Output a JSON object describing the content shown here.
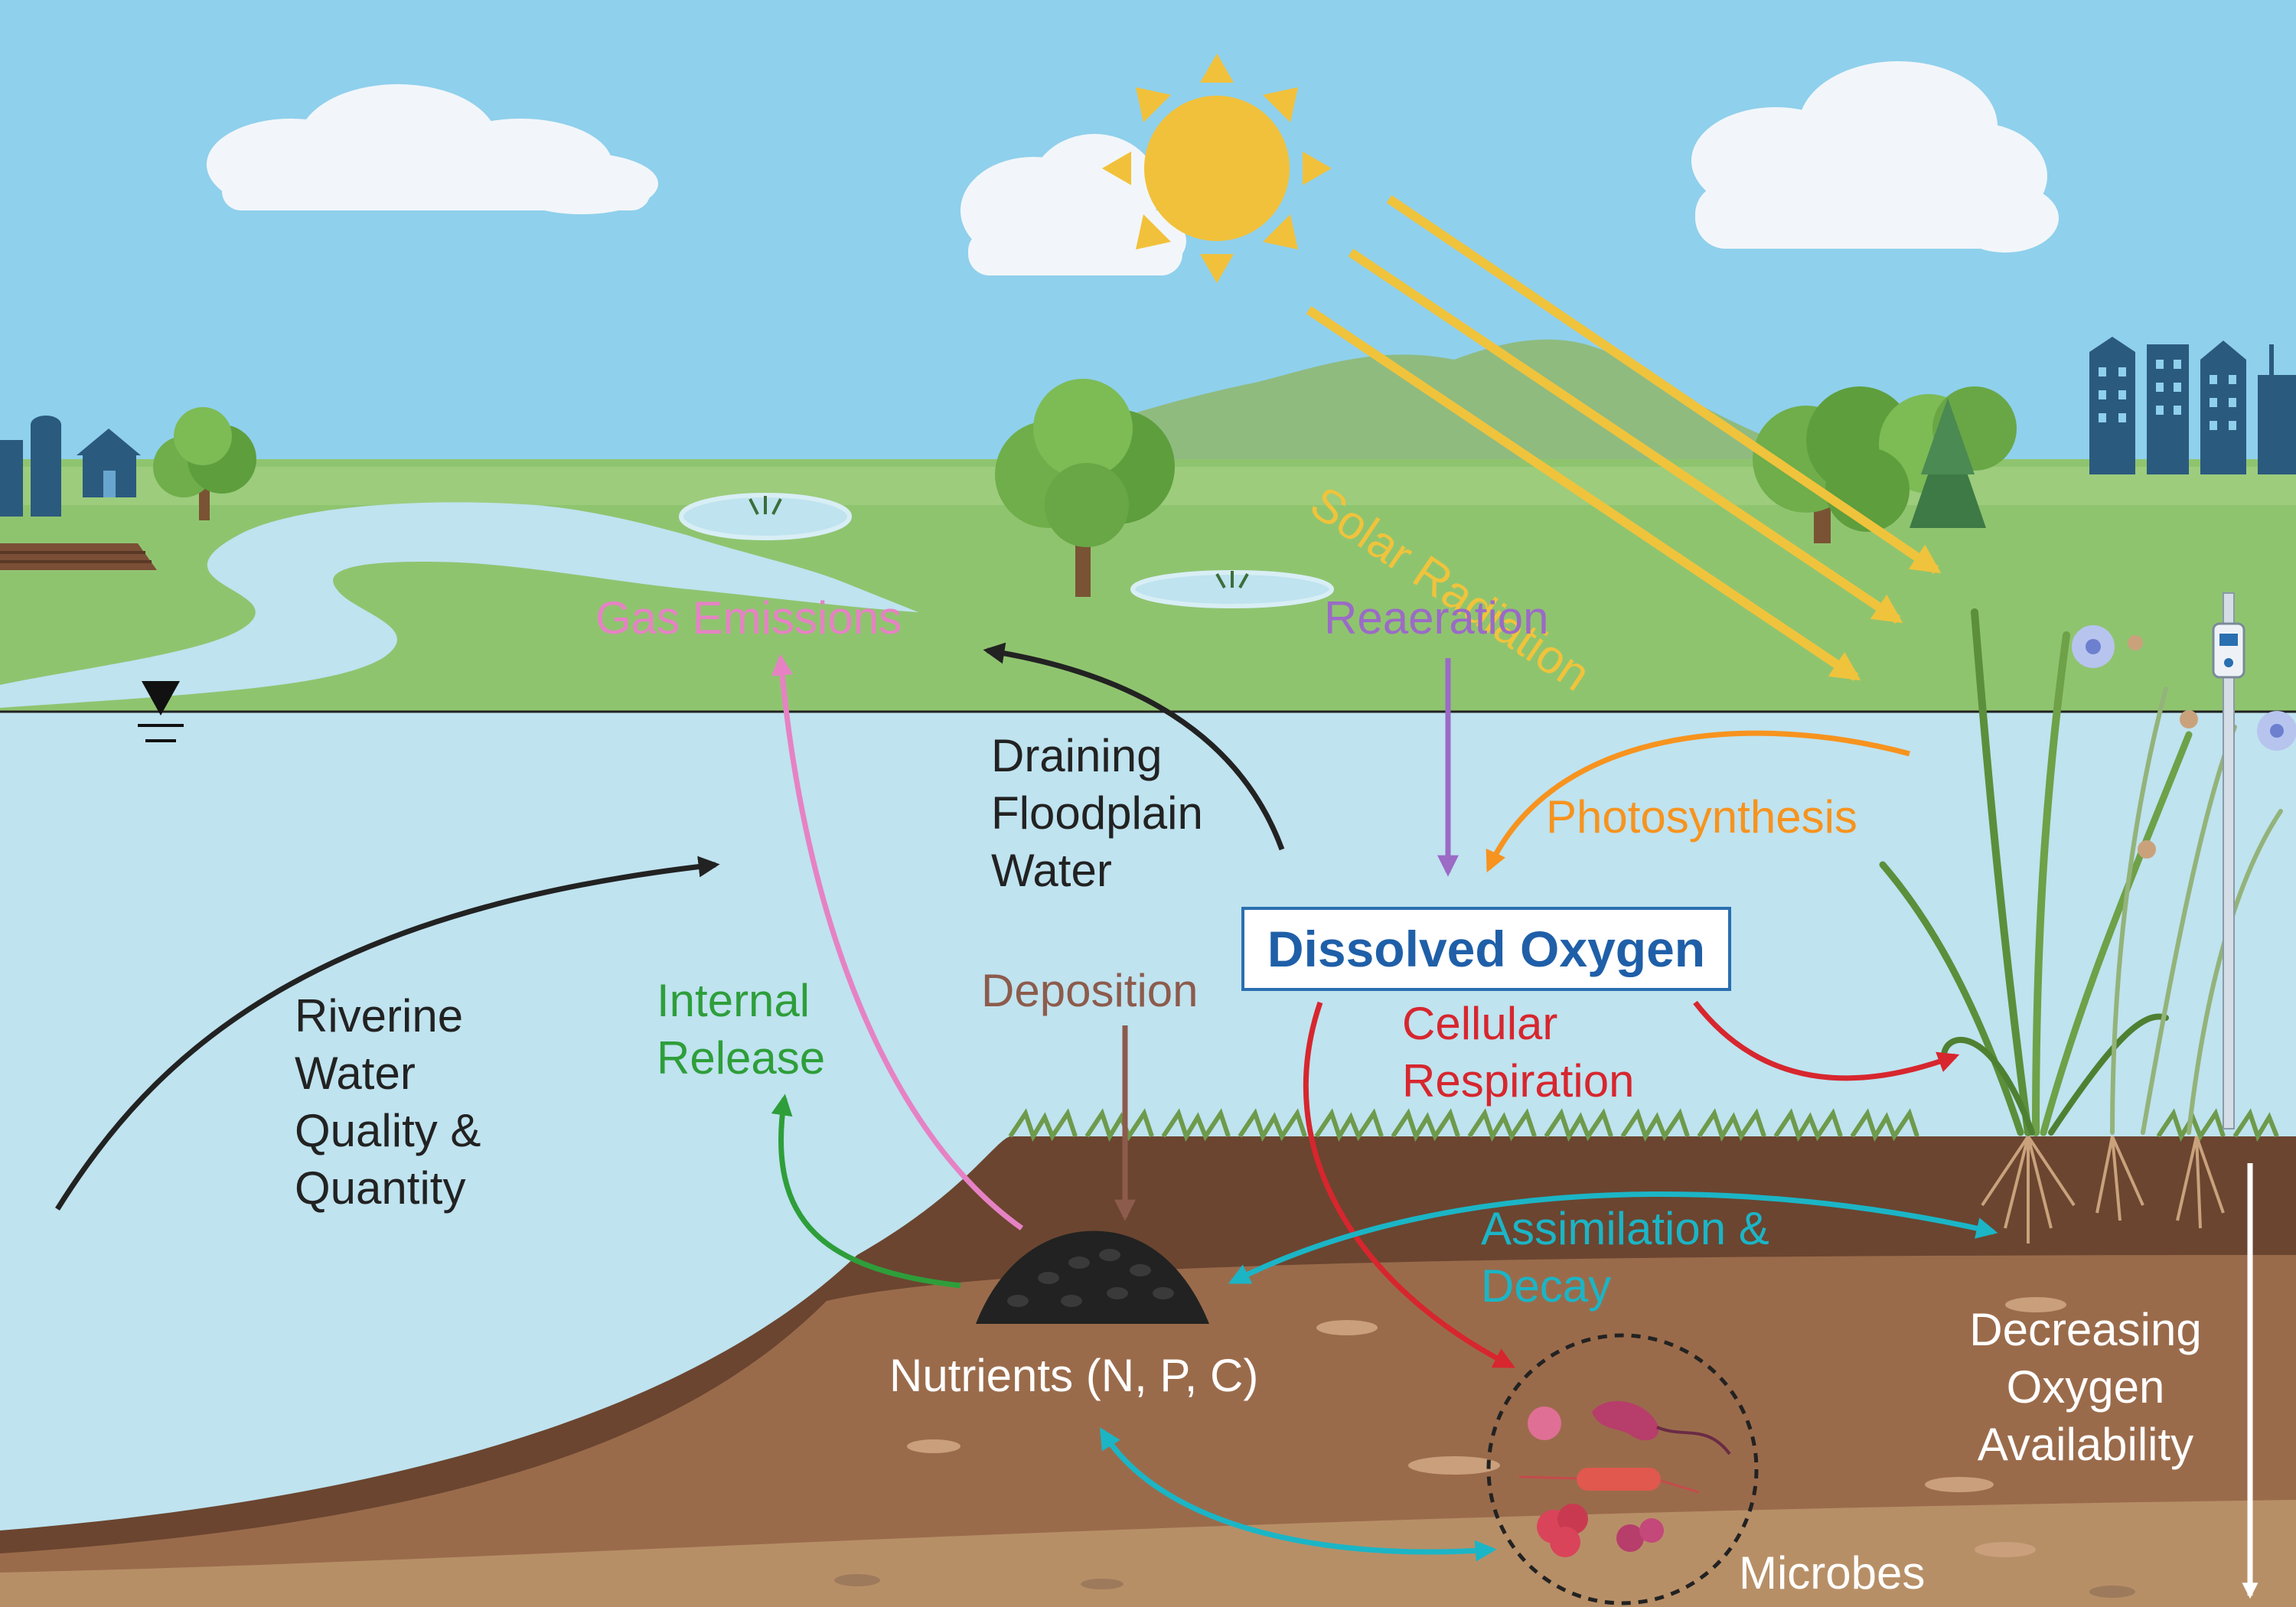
{
  "colors": {
    "sky": "#8fd0ec",
    "water": "#bfe3ef",
    "grass": "#8fc46f",
    "soil_top": "#6b4530",
    "soil_mid": "#9a6b4b",
    "soil_deep": "#b78f67",
    "sun": "#f2c13b",
    "solar": "#f0c33c",
    "gas": "#e682c4",
    "reaeration": "#9b6bc6",
    "photosynthesis": "#f7931e",
    "respiration": "#d7262e",
    "deposition": "#8d5b4c",
    "internal_release": "#2e9e3a",
    "assimilation": "#1bb5c6",
    "dark": "#222222",
    "do_box": "#1f5fa8"
  },
  "labels": {
    "solar_radiation": "Solar Radiation",
    "gas_emissions": "Gas Emissions",
    "reaeration": "Reaeration",
    "draining_floodplain": "Draining\nFloodplain\nWater",
    "photosynthesis": "Photosynthesis",
    "dissolved_oxygen": "Dissolved Oxygen",
    "riverine": "Riverine\nWater\nQuality &\nQuantity",
    "internal_release": "Internal\nRelease",
    "deposition": "Deposition",
    "cellular_respiration": "Cellular\nRespiration",
    "assimilation_decay": "Assimilation &\nDecay",
    "nutrients": "Nutrients (N, P, C)",
    "decreasing_oxygen": "Decreasing\nOxygen\nAvailability",
    "microbes": "Microbes"
  },
  "icons": [
    "sun-icon",
    "cloud-icon",
    "farm-barn-icon",
    "house-icon",
    "city-buildings-icon",
    "tree-icon",
    "pine-tree-icon",
    "wetland-pond-icon",
    "water-table-symbol-icon",
    "wetland-plants-icon",
    "do-sensor-probe-icon",
    "sediment-pile-icon",
    "microbes-icon"
  ]
}
